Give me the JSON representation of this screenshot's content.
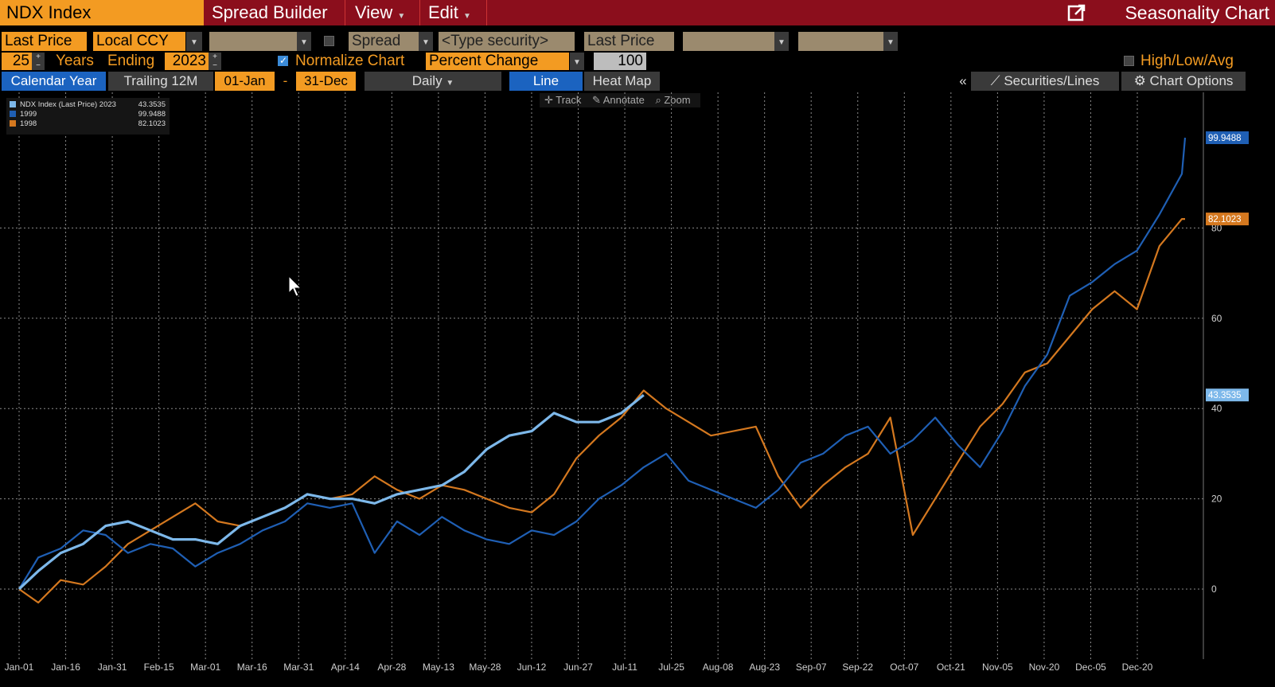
{
  "titlebar": {
    "security": "NDX Index",
    "spread_builder": "Spread Builder",
    "view": "View",
    "edit": "Edit",
    "title": "Seasonality Chart",
    "launch_icon": "external-link-icon"
  },
  "row1": {
    "price_field": "Last Price",
    "currency": "Local CCY",
    "spread": "Spread",
    "type_security": "<Type security>",
    "price_field2": "Last Price"
  },
  "row2": {
    "years": "25",
    "years_label": "Years",
    "ending_label": "Ending",
    "ending_year": "2023",
    "normalize_label": "Normalize Chart",
    "normalize_checked": true,
    "mode": "Percent Change",
    "base": "100",
    "hla_label": "High/Low/Avg"
  },
  "row3": {
    "calendar_year": "Calendar Year",
    "trailing": "Trailing 12M",
    "start": "01-Jan",
    "dash": "-",
    "end": "31-Dec",
    "frequency": "Daily",
    "line": "Line",
    "heat_map": "Heat Map",
    "collapse": "«",
    "securities": "Securities/Lines",
    "chart_options": "Chart Options"
  },
  "toolbar": {
    "track": "Track",
    "annotate": "Annotate",
    "zoom": "Zoom"
  },
  "colors": {
    "s2023": "#7db8ea",
    "s1999": "#1f5fb4",
    "s1998": "#d4781f",
    "titlebar": "#8b0e1c",
    "accent": "#f39b22"
  },
  "chart_data": {
    "type": "line",
    "x_ticks": [
      "Jan-01",
      "Jan-16",
      "Jan-31",
      "Feb-15",
      "Mar-01",
      "Mar-16",
      "Mar-31",
      "Apr-14",
      "Apr-28",
      "May-13",
      "May-28",
      "Jun-12",
      "Jun-27",
      "Jul-11",
      "Jul-25",
      "Aug-08",
      "Aug-23",
      "Sep-07",
      "Sep-22",
      "Oct-07",
      "Oct-21",
      "Nov-05",
      "Nov-20",
      "Dec-05",
      "Dec-20"
    ],
    "y_ticks": [
      0,
      20,
      40,
      60,
      80
    ],
    "ylim": [
      -10,
      108
    ],
    "grid": true,
    "legend_position": "top-left",
    "series": [
      {
        "name": "NDX Index (Last Price) 2023",
        "last": "43.3535",
        "color": "#7db8ea",
        "points": [
          [
            1,
            0
          ],
          [
            7,
            4
          ],
          [
            14,
            8
          ],
          [
            21,
            10
          ],
          [
            28,
            14
          ],
          [
            35,
            15
          ],
          [
            42,
            13
          ],
          [
            49,
            11
          ],
          [
            56,
            11
          ],
          [
            63,
            10
          ],
          [
            70,
            14
          ],
          [
            77,
            16
          ],
          [
            84,
            18
          ],
          [
            91,
            21
          ],
          [
            98,
            20
          ],
          [
            105,
            20
          ],
          [
            112,
            19
          ],
          [
            119,
            21
          ],
          [
            126,
            22
          ],
          [
            133,
            23
          ],
          [
            140,
            26
          ],
          [
            147,
            31
          ],
          [
            154,
            34
          ],
          [
            161,
            35
          ],
          [
            168,
            39
          ],
          [
            175,
            37
          ],
          [
            182,
            37
          ],
          [
            189,
            39
          ],
          [
            196,
            43
          ]
        ]
      },
      {
        "name": "1999",
        "last": "99.9488",
        "color": "#1f5fb4",
        "points": [
          [
            1,
            0
          ],
          [
            7,
            7
          ],
          [
            14,
            9
          ],
          [
            21,
            13
          ],
          [
            28,
            12
          ],
          [
            35,
            8
          ],
          [
            42,
            10
          ],
          [
            49,
            9
          ],
          [
            56,
            5
          ],
          [
            63,
            8
          ],
          [
            70,
            10
          ],
          [
            77,
            13
          ],
          [
            84,
            15
          ],
          [
            91,
            19
          ],
          [
            98,
            18
          ],
          [
            105,
            19
          ],
          [
            112,
            8
          ],
          [
            119,
            15
          ],
          [
            126,
            12
          ],
          [
            133,
            16
          ],
          [
            140,
            13
          ],
          [
            147,
            11
          ],
          [
            154,
            10
          ],
          [
            161,
            13
          ],
          [
            168,
            12
          ],
          [
            175,
            15
          ],
          [
            182,
            20
          ],
          [
            189,
            23
          ],
          [
            196,
            27
          ],
          [
            203,
            30
          ],
          [
            210,
            24
          ],
          [
            217,
            22
          ],
          [
            224,
            20
          ],
          [
            231,
            18
          ],
          [
            238,
            22
          ],
          [
            245,
            28
          ],
          [
            252,
            30
          ],
          [
            259,
            34
          ],
          [
            266,
            36
          ],
          [
            273,
            30
          ],
          [
            280,
            33
          ],
          [
            287,
            38
          ],
          [
            294,
            32
          ],
          [
            301,
            27
          ],
          [
            308,
            35
          ],
          [
            315,
            45
          ],
          [
            322,
            52
          ],
          [
            329,
            65
          ],
          [
            336,
            68
          ],
          [
            343,
            72
          ],
          [
            350,
            75
          ],
          [
            357,
            83
          ],
          [
            364,
            92
          ],
          [
            365,
            100
          ]
        ]
      },
      {
        "name": "1998",
        "last": "82.1023",
        "color": "#d4781f",
        "points": [
          [
            1,
            0
          ],
          [
            7,
            -3
          ],
          [
            14,
            2
          ],
          [
            21,
            1
          ],
          [
            28,
            5
          ],
          [
            35,
            10
          ],
          [
            42,
            13
          ],
          [
            49,
            16
          ],
          [
            56,
            19
          ],
          [
            63,
            15
          ],
          [
            70,
            14
          ],
          [
            77,
            16
          ],
          [
            84,
            18
          ],
          [
            91,
            21
          ],
          [
            98,
            20
          ],
          [
            105,
            21
          ],
          [
            112,
            25
          ],
          [
            119,
            22
          ],
          [
            126,
            20
          ],
          [
            133,
            23
          ],
          [
            140,
            22
          ],
          [
            147,
            20
          ],
          [
            154,
            18
          ],
          [
            161,
            17
          ],
          [
            168,
            21
          ],
          [
            175,
            29
          ],
          [
            182,
            34
          ],
          [
            189,
            38
          ],
          [
            196,
            44
          ],
          [
            203,
            40
          ],
          [
            210,
            37
          ],
          [
            217,
            34
          ],
          [
            224,
            35
          ],
          [
            231,
            36
          ],
          [
            238,
            25
          ],
          [
            245,
            18
          ],
          [
            252,
            23
          ],
          [
            259,
            27
          ],
          [
            266,
            30
          ],
          [
            273,
            38
          ],
          [
            280,
            12
          ],
          [
            287,
            20
          ],
          [
            294,
            28
          ],
          [
            301,
            36
          ],
          [
            308,
            41
          ],
          [
            315,
            48
          ],
          [
            322,
            50
          ],
          [
            329,
            56
          ],
          [
            336,
            62
          ],
          [
            343,
            66
          ],
          [
            350,
            62
          ],
          [
            357,
            76
          ],
          [
            364,
            82
          ],
          [
            365,
            82
          ]
        ]
      }
    ],
    "last_labels": [
      "99.9488",
      "82.1023",
      "43.3535"
    ]
  }
}
